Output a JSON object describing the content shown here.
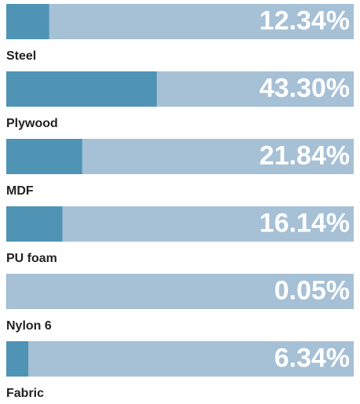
{
  "chart_data": {
    "type": "bar",
    "categories": [
      "Steel",
      "Plywood",
      "MDF",
      "PU foam",
      "Nylon 6",
      "Fabric"
    ],
    "values": [
      12.34,
      43.3,
      21.84,
      16.14,
      0.05,
      6.34
    ],
    "value_labels": [
      "12.34%",
      "43.30%",
      "21.84%",
      "16.14%",
      "0.05%",
      "6.34%"
    ],
    "xlim": [
      0,
      100
    ],
    "color": "#4f93b5",
    "track_color": "#a6c0d6"
  }
}
